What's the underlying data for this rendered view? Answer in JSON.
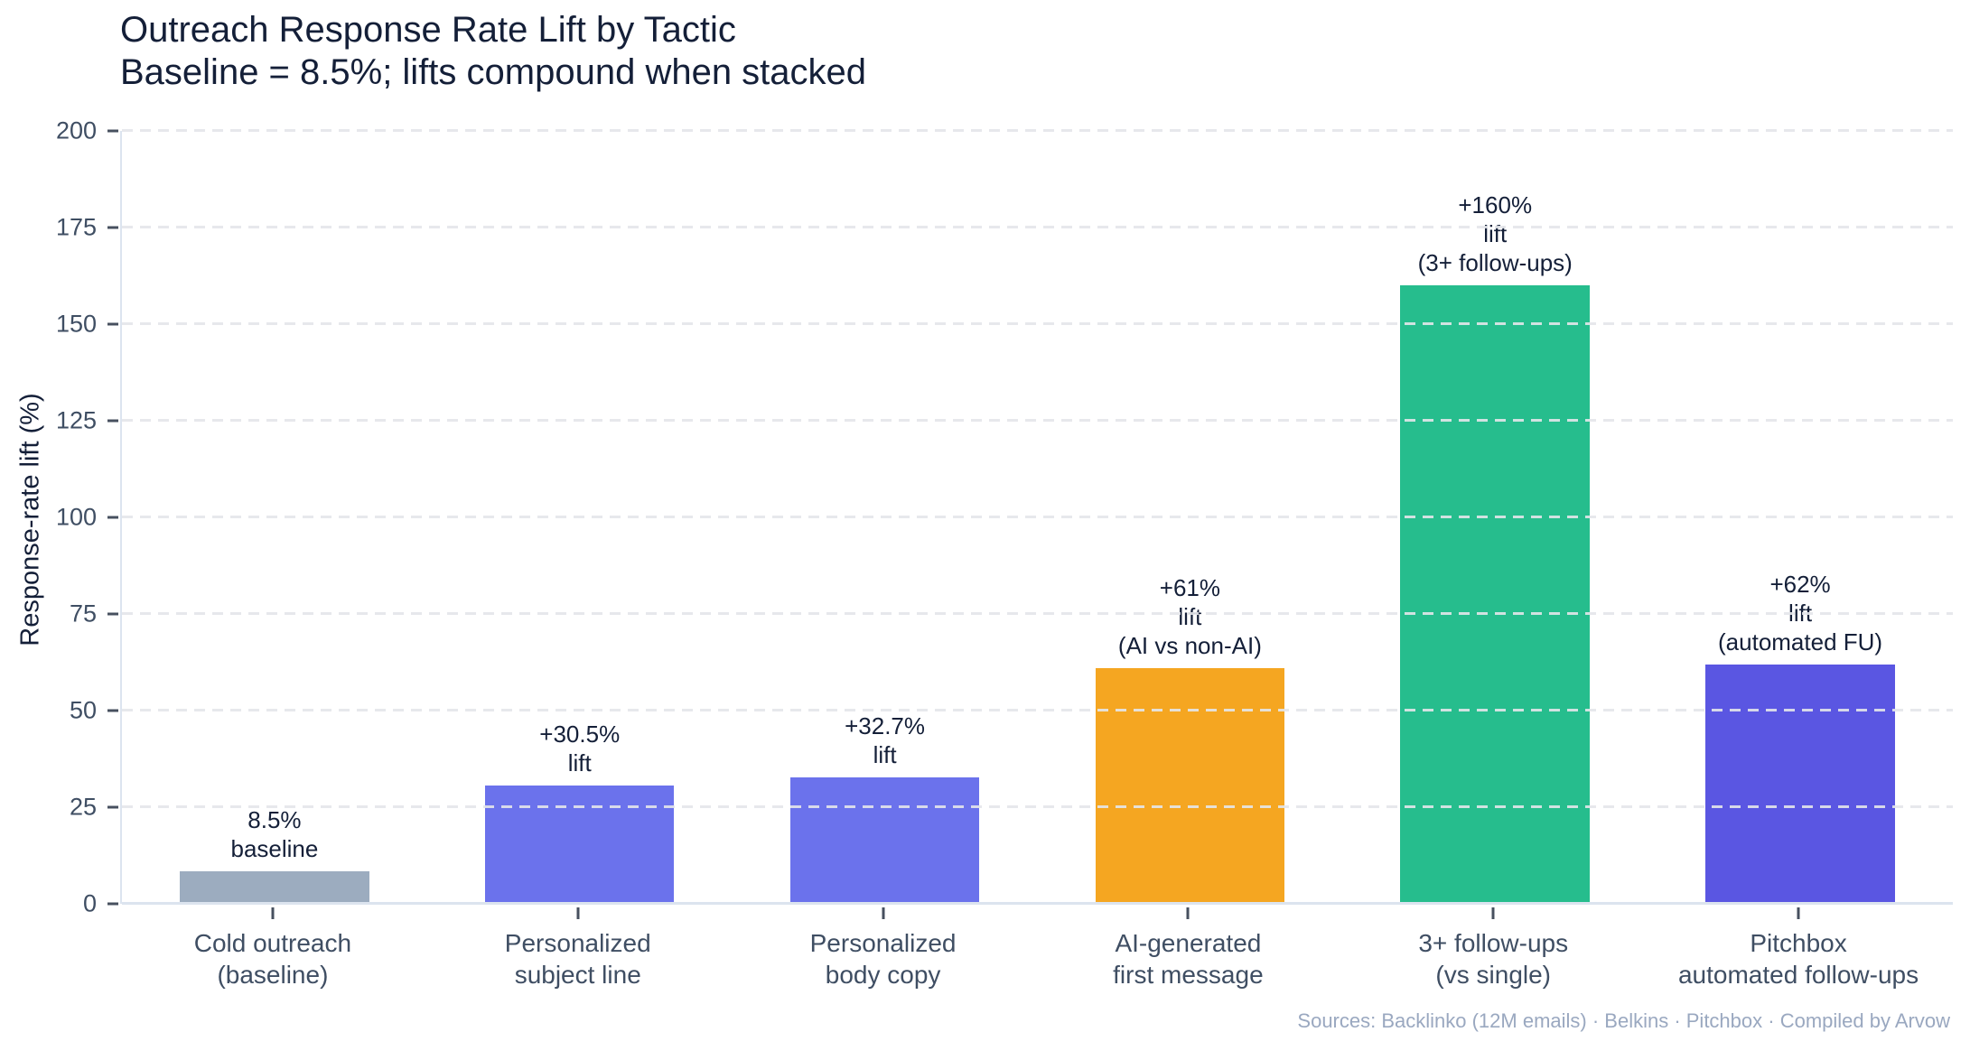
{
  "header": {
    "title": "Outreach Response Rate Lift by Tactic",
    "subtitle": "Baseline = 8.5%; lifts compound when stacked"
  },
  "chart_data": {
    "type": "bar",
    "title": "Outreach Response Rate Lift by Tactic",
    "subtitle": "Baseline = 8.5%; lifts compound when stacked",
    "xlabel": "",
    "ylabel": "Response-rate lift (%)",
    "ylim": [
      0,
      200
    ],
    "yticks": [
      0,
      25,
      50,
      75,
      100,
      125,
      150,
      175,
      200
    ],
    "grid": "horizontal dashed",
    "legend": "none",
    "categories": [
      "Cold outreach (baseline)",
      "Personalized subject line",
      "Personalized body copy",
      "AI-generated first message",
      "3+ follow-ups (vs single)",
      "Pitchbox automated follow-ups"
    ],
    "category_lines": [
      [
        "Cold outreach",
        "(baseline)"
      ],
      [
        "Personalized",
        "subject line"
      ],
      [
        "Personalized",
        "body copy"
      ],
      [
        "AI-generated",
        "first message"
      ],
      [
        "3+ follow-ups",
        "(vs single)"
      ],
      [
        "Pitchbox",
        "automated follow-ups"
      ]
    ],
    "values": [
      8.5,
      30.5,
      32.7,
      61,
      160,
      62
    ],
    "bar_colors": [
      "#9CACBF",
      "#6B72EC",
      "#6B72EC",
      "#F5A621",
      "#26BD8D",
      "#5A56E2"
    ],
    "annotations": [
      [
        "8.5%",
        "baseline"
      ],
      [
        "+30.5%",
        "lift"
      ],
      [
        "+32.7%",
        "lift"
      ],
      [
        "+61%",
        "lift",
        "(AI vs non-AI)"
      ],
      [
        "+160%",
        "lift",
        "(3+ follow-ups)"
      ],
      [
        "+62%",
        "lift",
        "(automated FU)"
      ]
    ]
  },
  "footer": {
    "source": "Sources: Backlinko (12M emails) · Belkins · Pitchbox · Compiled by Arvow"
  },
  "colors": {
    "title_text": "#141F38",
    "tick_text": "#3F4E63",
    "annotation_text": "#141F38",
    "grid_line": "#E4E6EA",
    "axis_line": "#DCE4EF",
    "tick_mark": "#47505F",
    "source_text": "#9AA8C0"
  }
}
